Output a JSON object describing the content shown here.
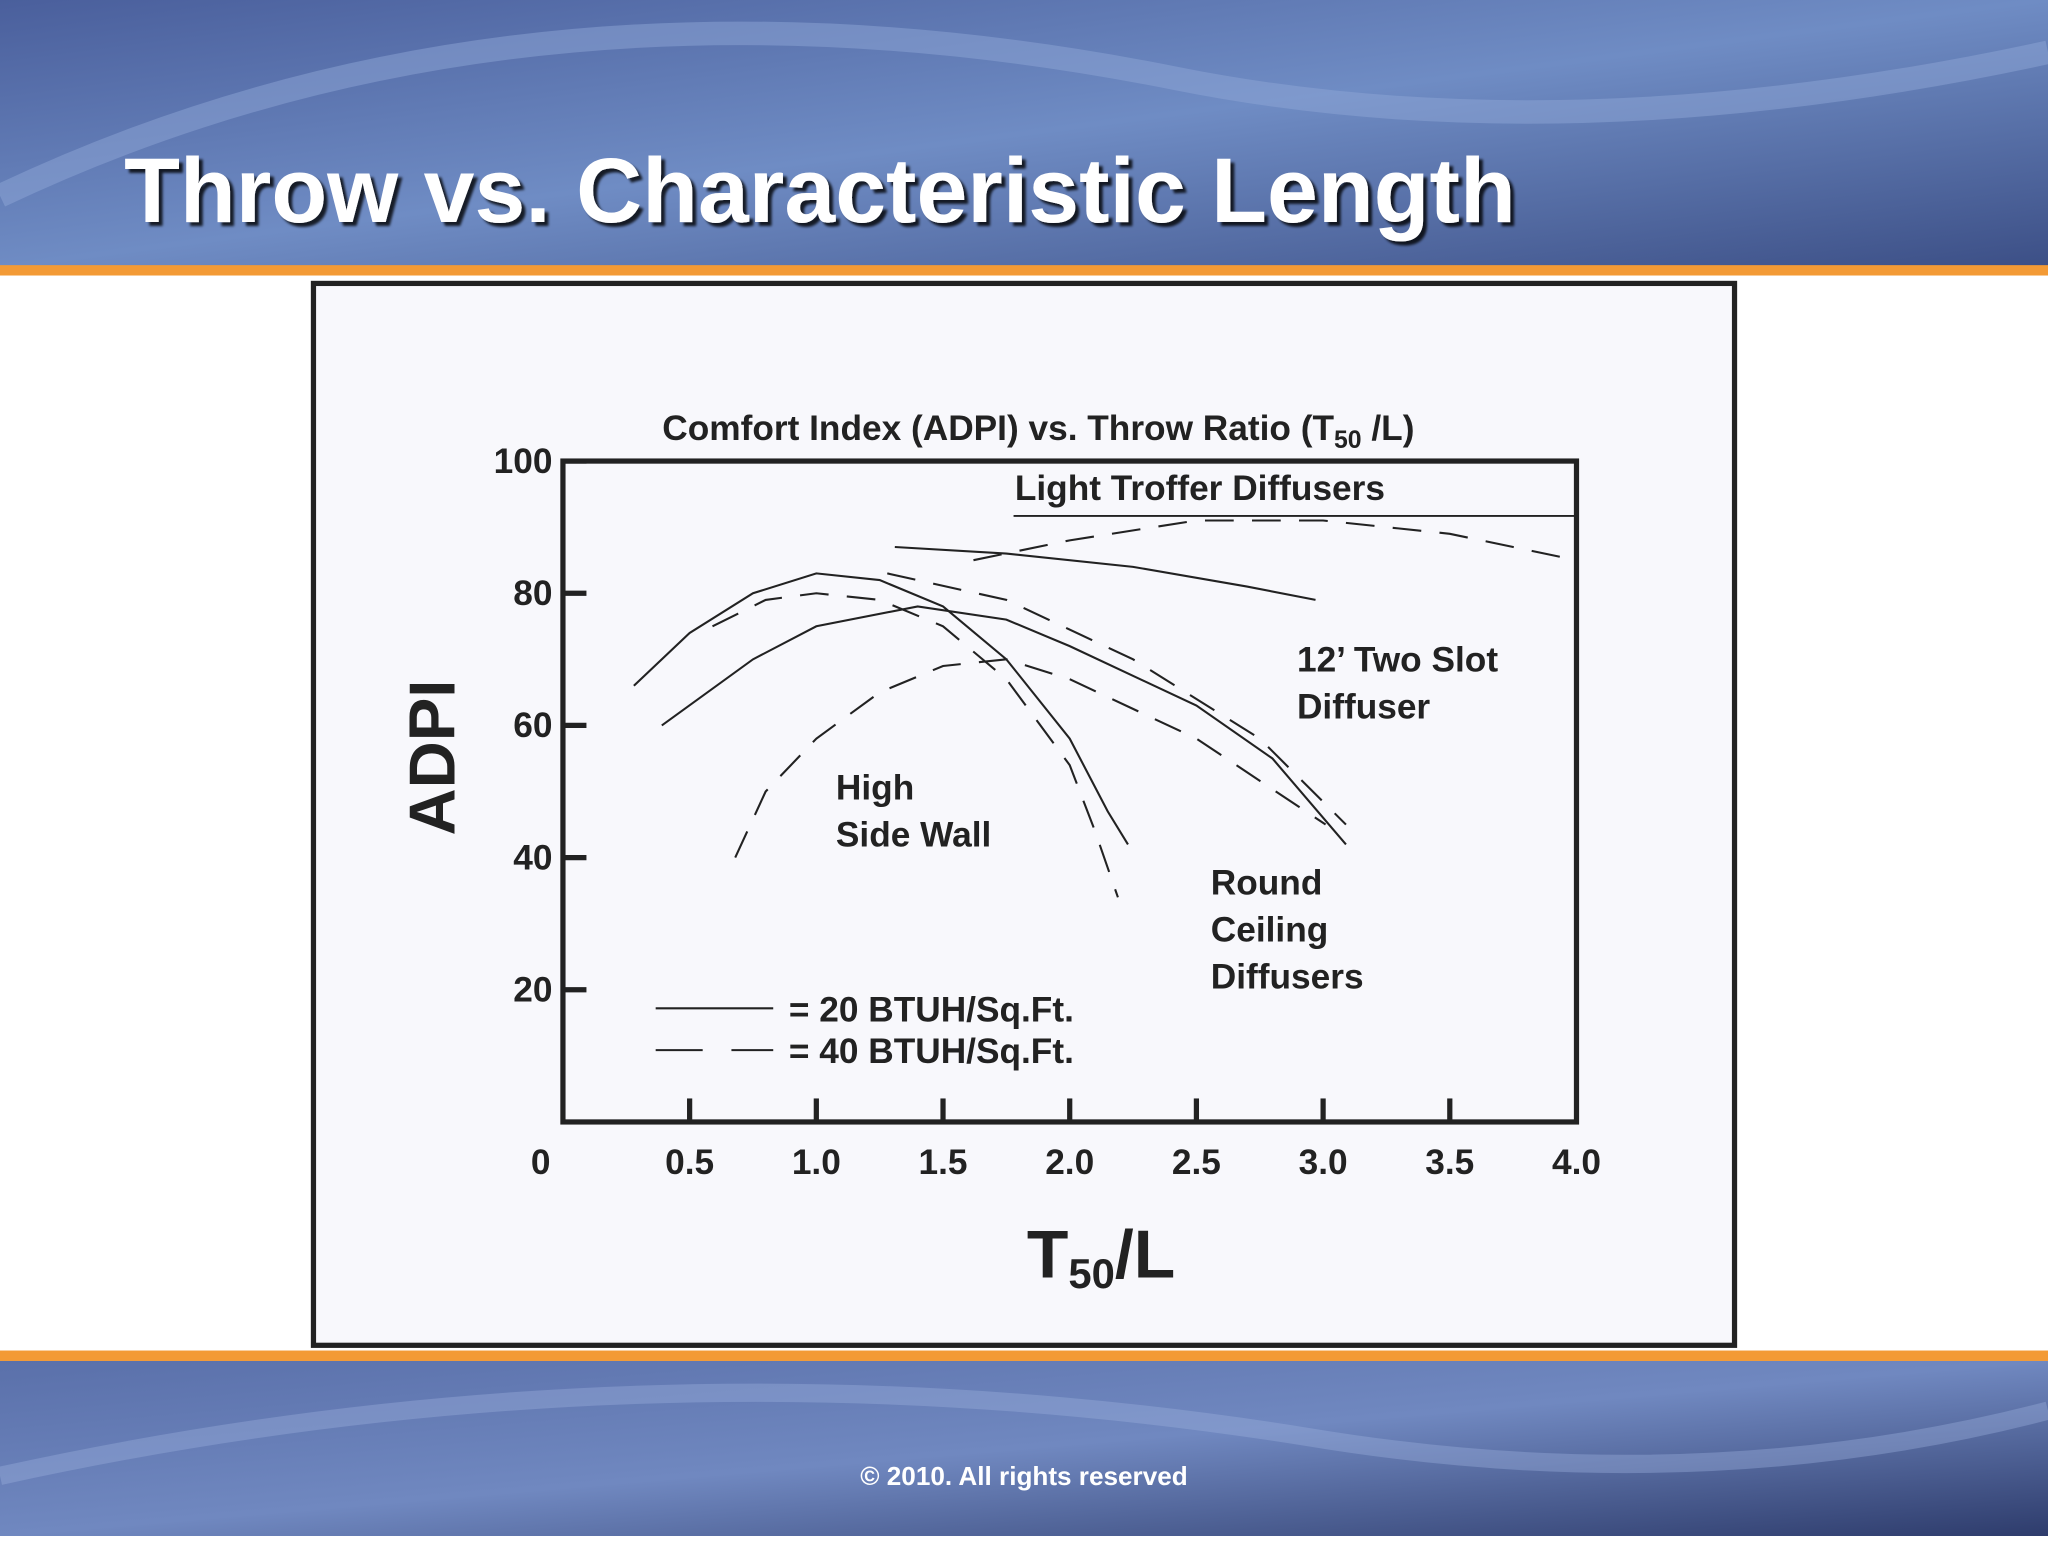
{
  "slide_title": "Throw vs. Characteristic Length",
  "footer": "© 2010. All rights reserved",
  "chart_data": {
    "type": "line",
    "title": [
      "Comfort Index (ADPI) vs. Throw Ratio (T",
      "50",
      " /L)"
    ],
    "y_label": "ADPI",
    "x_label": [
      "T",
      "50",
      "/L"
    ],
    "xlim": [
      0,
      4
    ],
    "ylim": [
      0,
      100
    ],
    "xticks": [
      0,
      0.5,
      {
        "value": 1,
        "label": "1.0"
      },
      1.5,
      {
        "value": 2,
        "label": "2.0"
      },
      2.5,
      {
        "value": 3,
        "label": "3.0"
      },
      3.5,
      {
        "value": 4,
        "label": "4.0"
      }
    ],
    "yticks": [
      20,
      40,
      60,
      80,
      100
    ],
    "color": "#222222",
    "series": [
      {
        "dash": "solid",
        "x": [
          0.28,
          0.5,
          0.75,
          1.0,
          1.25,
          1.5,
          1.75,
          2.0,
          2.15,
          2.23
        ],
        "values": [
          66,
          74,
          80,
          83,
          82,
          78,
          70,
          58,
          47,
          42
        ]
      },
      {
        "dash": "dashed",
        "x": [
          0.59,
          0.8,
          1.0,
          1.25,
          1.5,
          1.75,
          2.0,
          2.1,
          2.19
        ],
        "values": [
          75,
          79,
          80,
          79,
          75,
          67,
          54,
          44,
          34
        ]
      },
      {
        "dash": "solid",
        "x": [
          0.39,
          0.75,
          1.0,
          1.4,
          1.75,
          2.0,
          2.5,
          2.8,
          3.09
        ],
        "values": [
          60,
          70,
          75,
          78,
          76,
          72,
          63,
          55,
          42
        ]
      },
      {
        "dash": "dashed",
        "x": [
          0.68,
          0.8,
          1.0,
          1.25,
          1.5,
          1.75,
          2.0,
          2.5,
          3.01
        ],
        "values": [
          40,
          50,
          58,
          65,
          69,
          70,
          67,
          58,
          45
        ]
      },
      {
        "dash": "dashed",
        "x": [
          1.28,
          1.75,
          2.25,
          2.75,
          3.09
        ],
        "values": [
          83,
          79,
          70,
          58,
          45
        ]
      },
      {
        "dash": "solid",
        "x": [
          1.31,
          1.75,
          2.25,
          2.7,
          2.97
        ],
        "values": [
          87,
          86,
          84,
          81,
          79
        ]
      },
      {
        "dash": "dashed",
        "x": [
          1.62,
          2.0,
          2.5,
          3.0,
          3.5,
          4.0
        ],
        "values": [
          85,
          88,
          91,
          91,
          89,
          85
        ]
      }
    ],
    "legend": [
      {
        "label": "= 20 BTUH/Sq.Ft.",
        "dash": "solid"
      },
      {
        "label": "= 40 BTUH/Sq.Ft.",
        "dash": "dashed"
      }
    ],
    "annotations": [
      [
        "Light Troffer Diffusers"
      ],
      [
        "12’ Two Slot",
        "Diffuser"
      ],
      [
        "High",
        "Side Wall"
      ],
      [
        "Round",
        "Ceiling",
        "Diffusers"
      ]
    ]
  }
}
